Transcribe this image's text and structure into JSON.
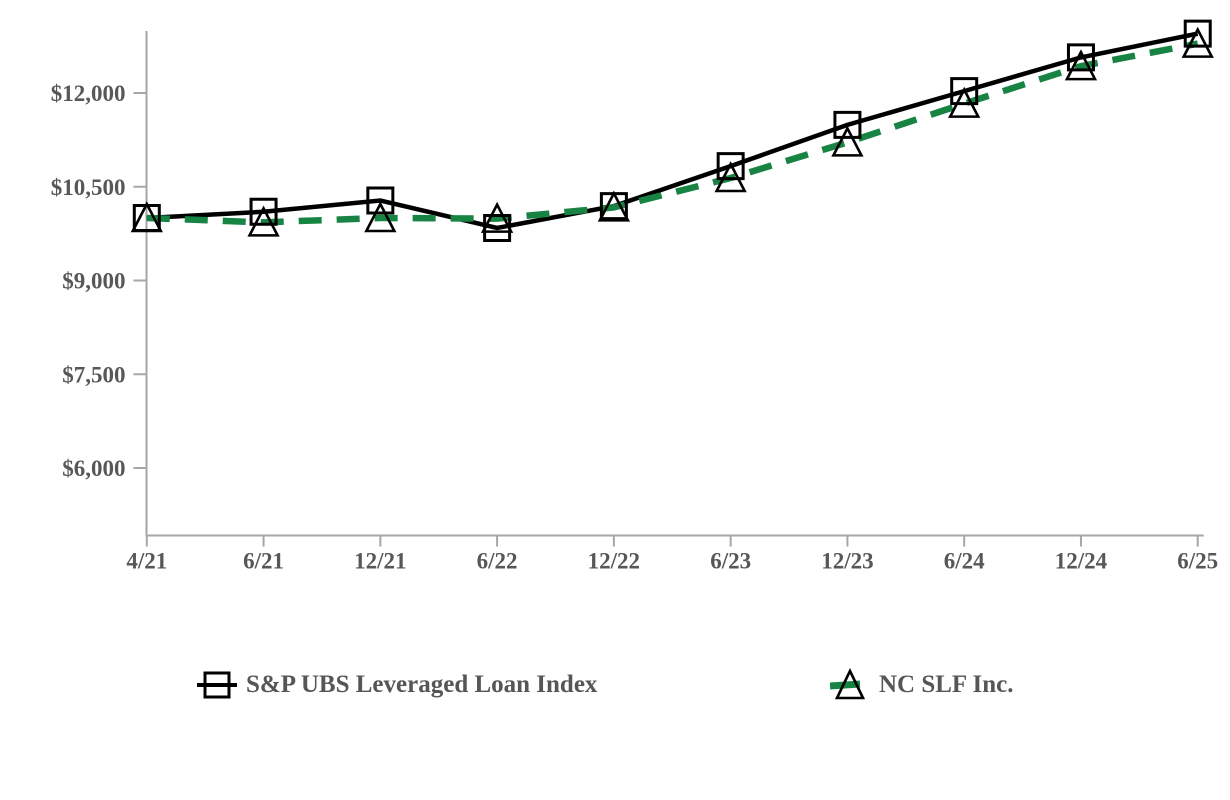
{
  "chart_data": {
    "type": "line",
    "categories": [
      "4/21",
      "6/21",
      "12/21",
      "6/22",
      "12/22",
      "6/23",
      "12/23",
      "6/24",
      "12/24",
      "6/25"
    ],
    "series": [
      {
        "name": "S&P UBS Leveraged Loan Index",
        "color": "#000000",
        "line_style": "solid",
        "marker": "square",
        "values": [
          10000,
          10100,
          10280,
          9840,
          10190,
          10830,
          11490,
          12030,
          12570,
          12950
        ]
      },
      {
        "name": "NC SLF Inc.",
        "color": "#178443",
        "line_style": "dashed",
        "marker": "triangle",
        "values": [
          10000,
          9930,
          10000,
          9990,
          10170,
          10640,
          11210,
          11830,
          12430,
          12790
        ]
      }
    ],
    "title": "",
    "xlabel": "",
    "ylabel": "",
    "ytick_labels": [
      "$12,000",
      "$10,500",
      "$9,000",
      "$7,500",
      "$6,000"
    ],
    "ytick_values": [
      12000,
      10500,
      9000,
      7500,
      6000
    ],
    "ylim": [
      4900,
      12990
    ],
    "grid": false,
    "legend_position": "bottom",
    "axis_color": "#a6a6a6",
    "tick_text_color": "#575757"
  }
}
